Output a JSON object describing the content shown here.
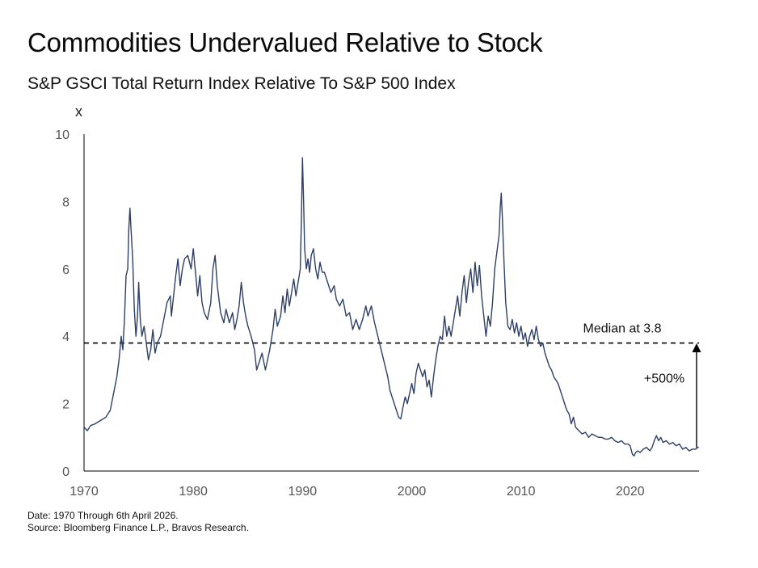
{
  "title": "Commodities Undervalued Relative to Stock",
  "subtitle": "S&P GSCI Total Return Index Relative To S&P 500 Index",
  "footer": {
    "date_note": "Date: 1970 Through 6th April 2026.",
    "source_note": "Source: Bloomberg Finance L.P., Bravos Research."
  },
  "colors": {
    "line": "#2e3f66",
    "axis": "#000000",
    "tick_text": "#555555",
    "median_line": "#000000"
  },
  "chart_data": {
    "type": "line",
    "title": "Commodities Undervalued Relative to Stock",
    "subtitle": "S&P GSCI Total Return Index Relative To S&P 500 Index",
    "ylabel": "x",
    "xlabel": "",
    "xlim": [
      1970,
      2026.3
    ],
    "ylim": [
      0,
      10
    ],
    "x_ticks": [
      "1970",
      "1980",
      "1990",
      "2000",
      "2010",
      "2020"
    ],
    "y_ticks": [
      "0",
      "2",
      "4",
      "6",
      "8",
      "10"
    ],
    "grid": false,
    "legend": "none",
    "series": [
      {
        "points": [
          [
            1970.0,
            1.3
          ],
          [
            1970.3,
            1.2
          ],
          [
            1970.6,
            1.35
          ],
          [
            1971.0,
            1.4
          ],
          [
            1971.5,
            1.5
          ],
          [
            1972.0,
            1.6
          ],
          [
            1972.4,
            1.8
          ],
          [
            1972.7,
            2.3
          ],
          [
            1973.0,
            2.8
          ],
          [
            1973.2,
            3.3
          ],
          [
            1973.4,
            4.0
          ],
          [
            1973.55,
            3.6
          ],
          [
            1973.7,
            4.5
          ],
          [
            1973.85,
            5.8
          ],
          [
            1974.0,
            6.0
          ],
          [
            1974.1,
            7.2
          ],
          [
            1974.2,
            7.8
          ],
          [
            1974.3,
            7.2
          ],
          [
            1974.45,
            6.3
          ],
          [
            1974.6,
            4.8
          ],
          [
            1974.75,
            4.0
          ],
          [
            1974.9,
            4.6
          ],
          [
            1975.0,
            5.6
          ],
          [
            1975.15,
            4.5
          ],
          [
            1975.3,
            4.0
          ],
          [
            1975.5,
            4.3
          ],
          [
            1975.7,
            3.8
          ],
          [
            1975.9,
            3.3
          ],
          [
            1976.1,
            3.6
          ],
          [
            1976.3,
            4.2
          ],
          [
            1976.5,
            3.5
          ],
          [
            1976.7,
            3.8
          ],
          [
            1977.0,
            4.0
          ],
          [
            1977.3,
            4.5
          ],
          [
            1977.6,
            5.0
          ],
          [
            1977.9,
            5.2
          ],
          [
            1978.0,
            4.6
          ],
          [
            1978.2,
            5.2
          ],
          [
            1978.4,
            5.8
          ],
          [
            1978.6,
            6.3
          ],
          [
            1978.8,
            5.5
          ],
          [
            1979.0,
            6.0
          ],
          [
            1979.2,
            6.3
          ],
          [
            1979.5,
            6.4
          ],
          [
            1979.8,
            6.0
          ],
          [
            1980.0,
            6.6
          ],
          [
            1980.2,
            5.9
          ],
          [
            1980.4,
            5.2
          ],
          [
            1980.6,
            5.8
          ],
          [
            1980.8,
            5.0
          ],
          [
            1981.0,
            4.7
          ],
          [
            1981.3,
            4.5
          ],
          [
            1981.6,
            5.0
          ],
          [
            1981.8,
            6.0
          ],
          [
            1982.0,
            6.4
          ],
          [
            1982.2,
            5.5
          ],
          [
            1982.5,
            4.7
          ],
          [
            1982.8,
            4.4
          ],
          [
            1983.0,
            4.8
          ],
          [
            1983.3,
            4.4
          ],
          [
            1983.6,
            4.7
          ],
          [
            1983.8,
            4.2
          ],
          [
            1984.0,
            4.5
          ],
          [
            1984.2,
            4.9
          ],
          [
            1984.4,
            5.6
          ],
          [
            1984.6,
            5.0
          ],
          [
            1984.8,
            4.6
          ],
          [
            1985.0,
            4.3
          ],
          [
            1985.3,
            4.0
          ],
          [
            1985.6,
            3.6
          ],
          [
            1985.8,
            3.0
          ],
          [
            1986.0,
            3.2
          ],
          [
            1986.3,
            3.5
          ],
          [
            1986.6,
            3.0
          ],
          [
            1986.8,
            3.3
          ],
          [
            1987.0,
            3.6
          ],
          [
            1987.3,
            4.2
          ],
          [
            1987.5,
            4.8
          ],
          [
            1987.7,
            4.3
          ],
          [
            1988.0,
            4.6
          ],
          [
            1988.2,
            5.2
          ],
          [
            1988.4,
            4.7
          ],
          [
            1988.6,
            5.4
          ],
          [
            1988.8,
            4.9
          ],
          [
            1989.0,
            5.3
          ],
          [
            1989.2,
            5.7
          ],
          [
            1989.4,
            5.2
          ],
          [
            1989.6,
            5.6
          ],
          [
            1989.8,
            6.0
          ],
          [
            1989.9,
            7.5
          ],
          [
            1990.0,
            9.3
          ],
          [
            1990.1,
            8.0
          ],
          [
            1990.2,
            6.6
          ],
          [
            1990.35,
            6.0
          ],
          [
            1990.5,
            6.3
          ],
          [
            1990.65,
            5.9
          ],
          [
            1990.8,
            6.4
          ],
          [
            1991.0,
            6.6
          ],
          [
            1991.2,
            6.0
          ],
          [
            1991.4,
            5.7
          ],
          [
            1991.6,
            6.2
          ],
          [
            1991.8,
            5.9
          ],
          [
            1992.0,
            5.9
          ],
          [
            1992.3,
            5.6
          ],
          [
            1992.6,
            5.3
          ],
          [
            1992.9,
            5.5
          ],
          [
            1993.1,
            5.1
          ],
          [
            1993.4,
            4.9
          ],
          [
            1993.7,
            5.1
          ],
          [
            1994.0,
            4.6
          ],
          [
            1994.3,
            4.7
          ],
          [
            1994.6,
            4.2
          ],
          [
            1994.9,
            4.5
          ],
          [
            1995.2,
            4.2
          ],
          [
            1995.5,
            4.5
          ],
          [
            1995.8,
            4.9
          ],
          [
            1996.0,
            4.6
          ],
          [
            1996.3,
            4.9
          ],
          [
            1996.6,
            4.4
          ],
          [
            1996.9,
            4.0
          ],
          [
            1997.2,
            3.6
          ],
          [
            1997.5,
            3.2
          ],
          [
            1997.8,
            2.8
          ],
          [
            1998.0,
            2.4
          ],
          [
            1998.3,
            2.1
          ],
          [
            1998.6,
            1.8
          ],
          [
            1998.8,
            1.6
          ],
          [
            1999.0,
            1.55
          ],
          [
            1999.2,
            1.9
          ],
          [
            1999.4,
            2.2
          ],
          [
            1999.6,
            2.0
          ],
          [
            1999.8,
            2.3
          ],
          [
            2000.0,
            2.6
          ],
          [
            2000.2,
            2.3
          ],
          [
            2000.4,
            2.9
          ],
          [
            2000.6,
            3.2
          ],
          [
            2000.8,
            3.0
          ],
          [
            2001.0,
            2.8
          ],
          [
            2001.2,
            3.0
          ],
          [
            2001.4,
            2.5
          ],
          [
            2001.6,
            2.7
          ],
          [
            2001.8,
            2.2
          ],
          [
            2002.0,
            2.8
          ],
          [
            2002.2,
            3.3
          ],
          [
            2002.4,
            3.7
          ],
          [
            2002.6,
            4.0
          ],
          [
            2002.8,
            3.9
          ],
          [
            2003.0,
            4.6
          ],
          [
            2003.2,
            4.0
          ],
          [
            2003.4,
            4.3
          ],
          [
            2003.6,
            4.0
          ],
          [
            2003.8,
            4.4
          ],
          [
            2004.0,
            4.8
          ],
          [
            2004.2,
            5.2
          ],
          [
            2004.4,
            4.6
          ],
          [
            2004.6,
            5.3
          ],
          [
            2004.8,
            5.8
          ],
          [
            2005.0,
            5.0
          ],
          [
            2005.2,
            5.6
          ],
          [
            2005.4,
            6.0
          ],
          [
            2005.6,
            5.3
          ],
          [
            2005.8,
            6.2
          ],
          [
            2006.0,
            5.5
          ],
          [
            2006.2,
            6.1
          ],
          [
            2006.4,
            5.2
          ],
          [
            2006.6,
            4.6
          ],
          [
            2006.8,
            4.0
          ],
          [
            2007.0,
            4.6
          ],
          [
            2007.2,
            4.3
          ],
          [
            2007.4,
            5.0
          ],
          [
            2007.6,
            6.0
          ],
          [
            2007.8,
            6.5
          ],
          [
            2008.0,
            7.0
          ],
          [
            2008.1,
            7.8
          ],
          [
            2008.2,
            8.25
          ],
          [
            2008.3,
            7.5
          ],
          [
            2008.45,
            6.2
          ],
          [
            2008.6,
            5.0
          ],
          [
            2008.8,
            4.3
          ],
          [
            2009.0,
            4.2
          ],
          [
            2009.2,
            4.5
          ],
          [
            2009.4,
            4.1
          ],
          [
            2009.6,
            4.4
          ],
          [
            2009.8,
            4.0
          ],
          [
            2010.0,
            4.3
          ],
          [
            2010.2,
            3.9
          ],
          [
            2010.4,
            4.1
          ],
          [
            2010.6,
            3.7
          ],
          [
            2010.8,
            4.0
          ],
          [
            2011.0,
            4.2
          ],
          [
            2011.2,
            3.9
          ],
          [
            2011.4,
            4.3
          ],
          [
            2011.6,
            3.9
          ],
          [
            2011.8,
            3.7
          ],
          [
            2012.0,
            3.8
          ],
          [
            2012.2,
            3.5
          ],
          [
            2012.4,
            3.3
          ],
          [
            2012.6,
            3.1
          ],
          [
            2012.8,
            3.0
          ],
          [
            2013.0,
            2.8
          ],
          [
            2013.2,
            2.7
          ],
          [
            2013.4,
            2.6
          ],
          [
            2013.6,
            2.4
          ],
          [
            2013.8,
            2.2
          ],
          [
            2014.0,
            2.0
          ],
          [
            2014.2,
            1.8
          ],
          [
            2014.4,
            1.7
          ],
          [
            2014.6,
            1.4
          ],
          [
            2014.8,
            1.6
          ],
          [
            2015.0,
            1.3
          ],
          [
            2015.3,
            1.2
          ],
          [
            2015.6,
            1.1
          ],
          [
            2015.9,
            1.15
          ],
          [
            2016.2,
            1.0
          ],
          [
            2016.5,
            1.1
          ],
          [
            2016.8,
            1.05
          ],
          [
            2017.1,
            1.0
          ],
          [
            2017.4,
            1.0
          ],
          [
            2017.7,
            0.95
          ],
          [
            2018.0,
            0.95
          ],
          [
            2018.3,
            1.0
          ],
          [
            2018.6,
            0.9
          ],
          [
            2018.9,
            0.85
          ],
          [
            2019.2,
            0.9
          ],
          [
            2019.5,
            0.8
          ],
          [
            2019.8,
            0.8
          ],
          [
            2020.0,
            0.75
          ],
          [
            2020.2,
            0.5
          ],
          [
            2020.35,
            0.45
          ],
          [
            2020.5,
            0.55
          ],
          [
            2020.7,
            0.6
          ],
          [
            2020.9,
            0.55
          ],
          [
            2021.2,
            0.65
          ],
          [
            2021.5,
            0.7
          ],
          [
            2021.8,
            0.6
          ],
          [
            2022.0,
            0.7
          ],
          [
            2022.2,
            0.9
          ],
          [
            2022.4,
            1.05
          ],
          [
            2022.6,
            0.9
          ],
          [
            2022.8,
            1.0
          ],
          [
            2023.0,
            0.85
          ],
          [
            2023.3,
            0.9
          ],
          [
            2023.6,
            0.8
          ],
          [
            2023.9,
            0.85
          ],
          [
            2024.2,
            0.75
          ],
          [
            2024.5,
            0.8
          ],
          [
            2024.8,
            0.65
          ],
          [
            2025.1,
            0.7
          ],
          [
            2025.4,
            0.6
          ],
          [
            2025.7,
            0.65
          ],
          [
            2026.0,
            0.65
          ],
          [
            2026.27,
            0.72
          ]
        ]
      }
    ],
    "annotations": {
      "median_label": "Median at 3.8",
      "median_value": 3.8,
      "change_label": "+500%",
      "arrow_from": 0.65,
      "arrow_to": 3.8
    }
  }
}
